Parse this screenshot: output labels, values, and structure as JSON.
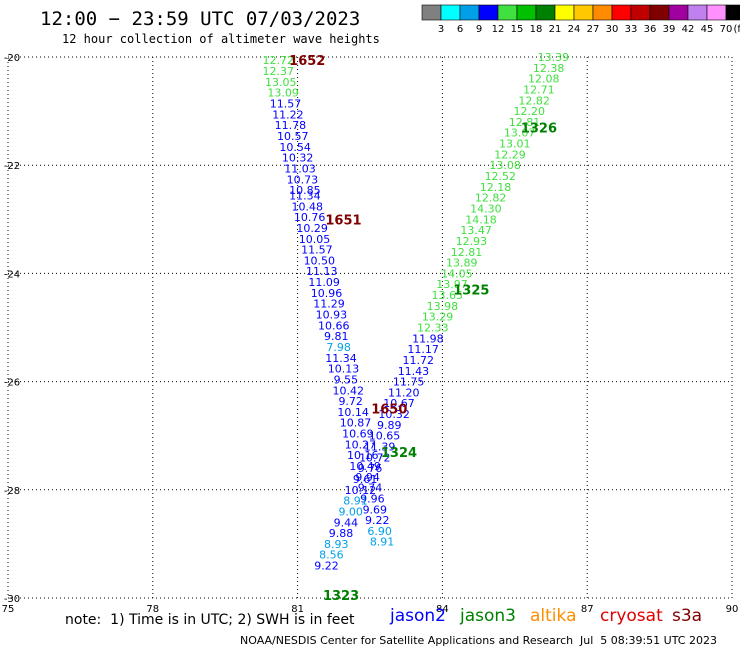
{
  "header": {
    "title": "12:00 − 23:59 UTC 07/03/2023",
    "subtitle": "12 hour collection of altimeter wave heights"
  },
  "legend": {
    "bins": [
      {
        "label": "3",
        "color": "#808080"
      },
      {
        "label": "6",
        "color": "#00ffff"
      },
      {
        "label": "9",
        "color": "#00a0e8"
      },
      {
        "label": "12",
        "color": "#0000ff"
      },
      {
        "label": "15",
        "color": "#40e040"
      },
      {
        "label": "18",
        "color": "#00c000"
      },
      {
        "label": "21",
        "color": "#008000"
      },
      {
        "label": "24",
        "color": "#ffff00"
      },
      {
        "label": "27",
        "color": "#ffc800"
      },
      {
        "label": "30",
        "color": "#ff8c00"
      },
      {
        "label": "33",
        "color": "#ff0000"
      },
      {
        "label": "36",
        "color": "#c00000"
      },
      {
        "label": "39",
        "color": "#800000"
      },
      {
        "label": "42",
        "color": "#a000a0"
      },
      {
        "label": "45",
        "color": "#c080f0"
      },
      {
        "label": "70",
        "color": "#ff90ff"
      },
      {
        "label": "",
        "color": "#000000"
      }
    ],
    "unit": "(ft)"
  },
  "note": "note:  1) Time is in UTC; 2) SWH is in feet",
  "missions": [
    {
      "name": "jason2",
      "color": "#0000ff"
    },
    {
      "name": "jason3",
      "color": "#008000"
    },
    {
      "name": "altika",
      "color": "#ff8c00"
    },
    {
      "name": "cryosat",
      "color": "#e00000"
    },
    {
      "name": "s3a",
      "color": "#800000"
    }
  ],
  "footer": {
    "credit": "NOAA/NESDIS Center for Satellite Applications and Research",
    "timestamp": "Jul  5 08:39:51 UTC 2023"
  },
  "chart_data": {
    "type": "scatter",
    "xlim": [
      75,
      90
    ],
    "ylim": [
      -30,
      -20
    ],
    "x_ticks": [
      "75",
      "78",
      "81",
      "84",
      "87",
      "90"
    ],
    "y_ticks": [
      "-20",
      "-22",
      "-24",
      "-26",
      "-28",
      "-30"
    ],
    "grid": true,
    "times": [
      {
        "label": "1652",
        "x": 81.2,
        "y": -20.06,
        "color": "#800000"
      },
      {
        "label": "1651",
        "x": 81.95,
        "y": -23.0,
        "color": "#800000"
      },
      {
        "label": "1650",
        "x": 82.9,
        "y": -26.5,
        "color": "#800000"
      },
      {
        "label": "1326",
        "x": 86.0,
        "y": -21.3,
        "color": "#008000"
      },
      {
        "label": "1325",
        "x": 84.6,
        "y": -24.3,
        "color": "#008000"
      },
      {
        "label": "1324",
        "x": 83.1,
        "y": -27.3,
        "color": "#008000"
      },
      {
        "label": "1323",
        "x": 81.9,
        "y": -29.94,
        "color": "#008000"
      }
    ],
    "series": [
      {
        "name": "jason2",
        "points": [
          {
            "x": 80.6,
            "y": -20.06,
            "v": "12.72",
            "c": "#40e040"
          },
          {
            "x": 80.6,
            "y": -20.26,
            "v": "12.37",
            "c": "#40e040"
          },
          {
            "x": 80.65,
            "y": -20.46,
            "v": "13.05",
            "c": "#40e040"
          },
          {
            "x": 80.7,
            "y": -20.66,
            "v": "13.09",
            "c": "#40e040"
          },
          {
            "x": 80.75,
            "y": -20.86,
            "v": "11.57",
            "c": "#0000ff"
          },
          {
            "x": 80.8,
            "y": -21.06,
            "v": "11.22",
            "c": "#0000ff"
          },
          {
            "x": 80.85,
            "y": -21.26,
            "v": "11.78",
            "c": "#0000ff"
          },
          {
            "x": 80.9,
            "y": -21.46,
            "v": "10.57",
            "c": "#0000ff"
          },
          {
            "x": 80.95,
            "y": -21.66,
            "v": "10.54",
            "c": "#0000ff"
          },
          {
            "x": 81.0,
            "y": -21.86,
            "v": "10.32",
            "c": "#0000ff"
          },
          {
            "x": 81.05,
            "y": -22.06,
            "v": "11.03",
            "c": "#0000ff"
          },
          {
            "x": 81.1,
            "y": -22.26,
            "v": "10.73",
            "c": "#0000ff"
          },
          {
            "x": 81.15,
            "y": -22.46,
            "v": "10.85",
            "c": "#0000ff"
          },
          {
            "x": 81.15,
            "y": -22.56,
            "v": "11.34",
            "c": "#0000ff"
          },
          {
            "x": 81.2,
            "y": -22.76,
            "v": "10.48",
            "c": "#0000ff"
          },
          {
            "x": 81.25,
            "y": -22.96,
            "v": "10.76",
            "c": "#0000ff"
          },
          {
            "x": 81.3,
            "y": -23.16,
            "v": "10.29",
            "c": "#0000ff"
          },
          {
            "x": 81.35,
            "y": -23.36,
            "v": "10.05",
            "c": "#0000ff"
          },
          {
            "x": 81.4,
            "y": -23.56,
            "v": "11.57",
            "c": "#0000ff"
          },
          {
            "x": 81.45,
            "y": -23.76,
            "v": "10.50",
            "c": "#0000ff"
          },
          {
            "x": 81.5,
            "y": -23.96,
            "v": "11.13",
            "c": "#0000ff"
          },
          {
            "x": 81.55,
            "y": -24.16,
            "v": "11.09",
            "c": "#0000ff"
          },
          {
            "x": 81.6,
            "y": -24.36,
            "v": "10.96",
            "c": "#0000ff"
          },
          {
            "x": 81.65,
            "y": -24.56,
            "v": "11.29",
            "c": "#0000ff"
          },
          {
            "x": 81.7,
            "y": -24.76,
            "v": "10.93",
            "c": "#0000ff"
          },
          {
            "x": 81.75,
            "y": -24.96,
            "v": "10.66",
            "c": "#0000ff"
          },
          {
            "x": 81.8,
            "y": -25.16,
            "v": "9.81",
            "c": "#0000ff"
          },
          {
            "x": 81.85,
            "y": -25.36,
            "v": "7.98",
            "c": "#00a0e8"
          },
          {
            "x": 81.9,
            "y": -25.56,
            "v": "11.34",
            "c": "#0000ff"
          },
          {
            "x": 81.95,
            "y": -25.76,
            "v": "10.13",
            "c": "#0000ff"
          },
          {
            "x": 82.0,
            "y": -25.96,
            "v": "9.55",
            "c": "#0000ff"
          },
          {
            "x": 82.05,
            "y": -26.16,
            "v": "10.42",
            "c": "#0000ff"
          },
          {
            "x": 82.1,
            "y": -26.36,
            "v": "9.72",
            "c": "#0000ff"
          },
          {
            "x": 82.15,
            "y": -26.56,
            "v": "10.14",
            "c": "#0000ff"
          },
          {
            "x": 82.2,
            "y": -26.76,
            "v": "10.87",
            "c": "#0000ff"
          },
          {
            "x": 82.25,
            "y": -26.96,
            "v": "10.69",
            "c": "#0000ff"
          },
          {
            "x": 82.3,
            "y": -27.16,
            "v": "10.27",
            "c": "#0000ff"
          },
          {
            "x": 82.35,
            "y": -27.36,
            "v": "10.16",
            "c": "#0000ff"
          },
          {
            "x": 82.4,
            "y": -27.56,
            "v": "10.49",
            "c": "#0000ff"
          },
          {
            "x": 82.45,
            "y": -27.76,
            "v": "9.94",
            "c": "#0000ff"
          },
          {
            "x": 82.5,
            "y": -27.96,
            "v": "9.74",
            "c": "#0000ff"
          },
          {
            "x": 82.55,
            "y": -28.16,
            "v": "9.96",
            "c": "#0000ff"
          },
          {
            "x": 82.6,
            "y": -28.36,
            "v": "9.69",
            "c": "#0000ff"
          },
          {
            "x": 82.65,
            "y": -28.56,
            "v": "9.22",
            "c": "#0000ff"
          },
          {
            "x": 82.7,
            "y": -28.76,
            "v": "6.90",
            "c": "#00a0e8"
          },
          {
            "x": 82.75,
            "y": -28.96,
            "v": "8.91",
            "c": "#00a0e8"
          }
        ]
      },
      {
        "name": "jason3",
        "points": [
          {
            "x": 86.3,
            "y": -20.0,
            "v": "13.39",
            "c": "#40e040"
          },
          {
            "x": 86.2,
            "y": -20.2,
            "v": "12.38",
            "c": "#40e040"
          },
          {
            "x": 86.1,
            "y": -20.4,
            "v": "12.08",
            "c": "#40e040"
          },
          {
            "x": 86.0,
            "y": -20.6,
            "v": "12.71",
            "c": "#40e040"
          },
          {
            "x": 85.9,
            "y": -20.8,
            "v": "12.82",
            "c": "#40e040"
          },
          {
            "x": 85.8,
            "y": -21.0,
            "v": "12.20",
            "c": "#40e040"
          },
          {
            "x": 85.7,
            "y": -21.2,
            "v": "12.81",
            "c": "#40e040"
          },
          {
            "x": 85.6,
            "y": -21.4,
            "v": "13.07",
            "c": "#40e040"
          },
          {
            "x": 85.5,
            "y": -21.6,
            "v": "13.01",
            "c": "#40e040"
          },
          {
            "x": 85.4,
            "y": -21.8,
            "v": "12.29",
            "c": "#40e040"
          },
          {
            "x": 85.3,
            "y": -22.0,
            "v": "13.08",
            "c": "#40e040"
          },
          {
            "x": 85.2,
            "y": -22.2,
            "v": "12.52",
            "c": "#40e040"
          },
          {
            "x": 85.1,
            "y": -22.4,
            "v": "12.18",
            "c": "#40e040"
          },
          {
            "x": 85.0,
            "y": -22.6,
            "v": "12.82",
            "c": "#40e040"
          },
          {
            "x": 84.9,
            "y": -22.8,
            "v": "14.30",
            "c": "#40e040"
          },
          {
            "x": 84.8,
            "y": -23.0,
            "v": "14.18",
            "c": "#40e040"
          },
          {
            "x": 84.7,
            "y": -23.2,
            "v": "13.47",
            "c": "#40e040"
          },
          {
            "x": 84.6,
            "y": -23.4,
            "v": "12.93",
            "c": "#40e040"
          },
          {
            "x": 84.5,
            "y": -23.6,
            "v": "12.81",
            "c": "#40e040"
          },
          {
            "x": 84.4,
            "y": -23.8,
            "v": "13.89",
            "c": "#40e040"
          },
          {
            "x": 84.3,
            "y": -24.0,
            "v": "14.05",
            "c": "#40e040"
          },
          {
            "x": 84.2,
            "y": -24.2,
            "v": "13.97",
            "c": "#40e040"
          },
          {
            "x": 84.1,
            "y": -24.4,
            "v": "13.65",
            "c": "#40e040"
          },
          {
            "x": 84.0,
            "y": -24.6,
            "v": "13.98",
            "c": "#40e040"
          },
          {
            "x": 83.9,
            "y": -24.8,
            "v": "13.29",
            "c": "#40e040"
          },
          {
            "x": 83.8,
            "y": -25.0,
            "v": "12.33",
            "c": "#40e040"
          },
          {
            "x": 83.7,
            "y": -25.2,
            "v": "11.98",
            "c": "#0000ff"
          },
          {
            "x": 83.6,
            "y": -25.4,
            "v": "11.17",
            "c": "#0000ff"
          },
          {
            "x": 83.5,
            "y": -25.6,
            "v": "11.72",
            "c": "#0000ff"
          },
          {
            "x": 83.4,
            "y": -25.8,
            "v": "11.43",
            "c": "#0000ff"
          },
          {
            "x": 83.3,
            "y": -26.0,
            "v": "11.75",
            "c": "#0000ff"
          },
          {
            "x": 83.2,
            "y": -26.2,
            "v": "11.20",
            "c": "#0000ff"
          },
          {
            "x": 83.1,
            "y": -26.4,
            "v": "10.67",
            "c": "#0000ff"
          },
          {
            "x": 83.0,
            "y": -26.6,
            "v": "10.32",
            "c": "#0000ff"
          },
          {
            "x": 82.9,
            "y": -26.8,
            "v": "9.89",
            "c": "#0000ff"
          },
          {
            "x": 82.8,
            "y": -27.0,
            "v": "10.65",
            "c": "#0000ff"
          },
          {
            "x": 82.7,
            "y": -27.2,
            "v": "11.39",
            "c": "#0000ff"
          },
          {
            "x": 82.6,
            "y": -27.4,
            "v": "10.72",
            "c": "#0000ff"
          },
          {
            "x": 82.5,
            "y": -27.6,
            "v": "9.76",
            "c": "#0000ff"
          },
          {
            "x": 82.4,
            "y": -27.8,
            "v": "9.61",
            "c": "#0000ff"
          },
          {
            "x": 82.3,
            "y": -28.0,
            "v": "10.12",
            "c": "#0000ff"
          },
          {
            "x": 82.2,
            "y": -28.2,
            "v": "8.91",
            "c": "#00a0e8"
          },
          {
            "x": 82.1,
            "y": -28.4,
            "v": "9.00",
            "c": "#00a0e8"
          },
          {
            "x": 82.0,
            "y": -28.6,
            "v": "9.44",
            "c": "#0000ff"
          },
          {
            "x": 81.9,
            "y": -28.8,
            "v": "9.88",
            "c": "#0000ff"
          },
          {
            "x": 81.8,
            "y": -29.0,
            "v": "8.93",
            "c": "#00a0e8"
          },
          {
            "x": 81.7,
            "y": -29.2,
            "v": "8.56",
            "c": "#00a0e8"
          },
          {
            "x": 81.6,
            "y": -29.4,
            "v": "9.22",
            "c": "#0000ff"
          }
        ]
      }
    ]
  }
}
